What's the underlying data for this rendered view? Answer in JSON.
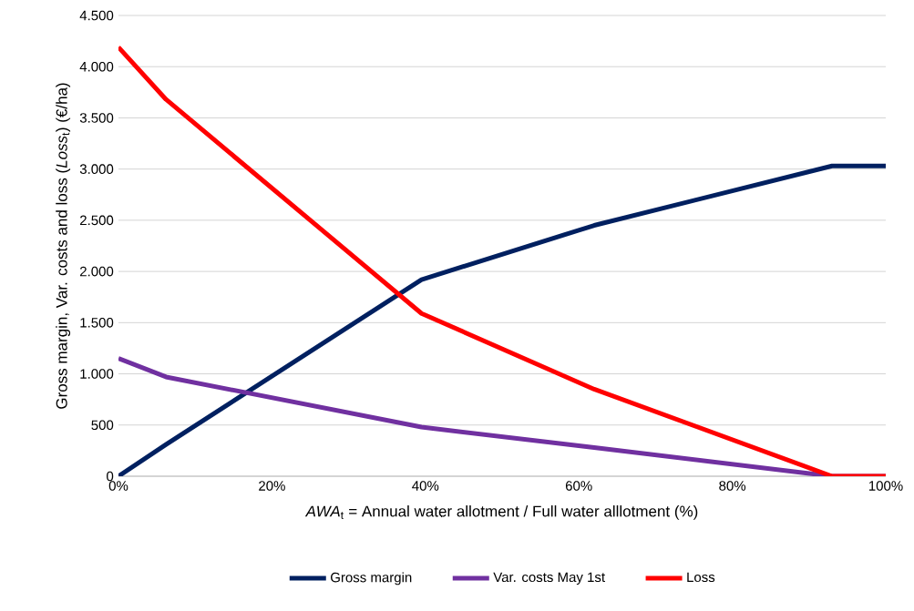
{
  "chart_data": {
    "type": "line",
    "xlabel": "*AWA*$_{t}$ = Annual water allotment / Full water alllotment (%)",
    "ylabel": "Gross margin, Var. costs  and loss (*Loss*$_{t}$) (€/ha)",
    "x": [
      0,
      6.2,
      39.5,
      62,
      93,
      100
    ],
    "series": [
      {
        "name": "Gross margin",
        "color": "#002060",
        "values": [
          0,
          310,
          1920,
          2450,
          3030,
          3030
        ]
      },
      {
        "name": "Var. costs May 1st",
        "color": "#7030a0",
        "values": [
          1150,
          970,
          480,
          280,
          0,
          0
        ]
      },
      {
        "name": "Loss",
        "color": "#ff0000",
        "values": [
          4190,
          3680,
          1590,
          850,
          0,
          0
        ]
      }
    ],
    "xlim": [
      0,
      100
    ],
    "xticks": [
      {
        "value": 0,
        "label": "0%"
      },
      {
        "value": 20,
        "label": "20%"
      },
      {
        "value": 40,
        "label": "40%"
      },
      {
        "value": 60,
        "label": "60%"
      },
      {
        "value": 80,
        "label": "80%"
      },
      {
        "value": 100,
        "label": "100%"
      }
    ],
    "ylim": [
      0,
      4500
    ],
    "yticks": [
      0,
      500,
      {
        "value": 1000,
        "label": "1.000"
      },
      {
        "value": 1500,
        "label": "1.500"
      },
      {
        "value": 2000,
        "label": "2.000"
      },
      {
        "value": 2500,
        "label": "2.500"
      },
      {
        "value": 3000,
        "label": "3.000"
      },
      {
        "value": 3500,
        "label": "3.500"
      },
      {
        "value": 4000,
        "label": "4.000"
      },
      {
        "value": 4500,
        "label": "4.500"
      }
    ],
    "grid": "y",
    "legend": "bottom",
    "marker": "none",
    "line_style": "solid"
  }
}
